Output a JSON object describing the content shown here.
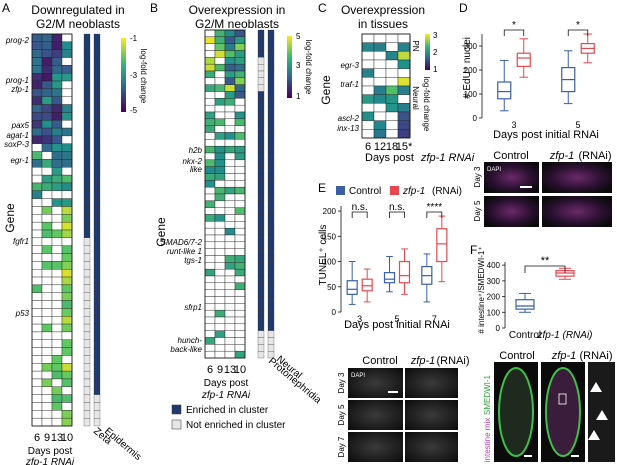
{
  "figure": {
    "panelA": {
      "letter": "A",
      "title_line1": "Downregulated in",
      "title_line2": "G2/M neoblasts",
      "gene_axis": "Gene",
      "genes": [
        "prog-2",
        "prog-1",
        "zfp-1",
        "pax5",
        "agat-1",
        "soxP-3",
        "egr-1",
        "fgfr1",
        "p53"
      ],
      "days": [
        "6",
        "9",
        "13",
        "10"
      ],
      "xlabel1": "Days post",
      "xlabel2": "zfp-1 RNAi",
      "cluster_labels": [
        "Zeta",
        "Epidermis"
      ],
      "colorbar_ticks": [
        "-1",
        "-3",
        "-5"
      ],
      "colorbar_label": "log-fold change"
    },
    "panelB": {
      "letter": "B",
      "title_line1": "Overexpression in",
      "title_line2": "G2/M neoblasts",
      "gene_axis": "Gene",
      "genes": [
        "h2b",
        "nkx-2",
        "like",
        "SMAD6/7-2",
        "runt-like 1",
        "tgs-1",
        "sfrp1",
        "hunch-",
        "back-like"
      ],
      "days": [
        "6",
        "9",
        "13",
        "10"
      ],
      "xlabel1": "Days post",
      "xlabel2": "zfp-1 RNAi",
      "cluster_labels": [
        "Neural",
        "Protonephridia"
      ],
      "colorbar_ticks": [
        "5",
        "3",
        "1"
      ],
      "colorbar_label": "log-fold change"
    },
    "panelC": {
      "letter": "C",
      "title_line1": "Overexpression",
      "title_line2": "in tissues",
      "gene_axis": "Gene",
      "genes": [
        "egr-3",
        "traf-1",
        "ascl-2",
        "inx-13"
      ],
      "days": [
        "6",
        "12",
        "18",
        "15*"
      ],
      "xlabel1": "Days post",
      "xlabel2": "zfp-1 RNAi",
      "bracket_labels": [
        "PN",
        "Neural"
      ],
      "colorbar_ticks": [
        "3",
        "2",
        "1"
      ],
      "colorbar_label": "log-fold change"
    },
    "panelD": {
      "letter": "D",
      "ylabel": "# EdU⁺ nuclei",
      "yticks": [
        "300",
        "200",
        "100",
        "0"
      ],
      "xticks": [
        "3",
        "5"
      ],
      "xlabel": "Days post initial RNAi",
      "sig": [
        "*",
        "*"
      ],
      "img_label_control": "Control",
      "img_label_zfp": "zfp-1",
      "img_label_rnai": "(RNAi)",
      "rows": [
        "Day 3",
        "Day 5"
      ],
      "dapi": "DAPI"
    },
    "panelE": {
      "letter": "E",
      "legend_control": "Control",
      "legend_zfp": "zfp-1",
      "legend_rnai": "(RNAi)",
      "ylabel": "TUNEL⁺ cells",
      "yticks": [
        "200",
        "150",
        "100",
        "50",
        "0"
      ],
      "xticks": [
        "3",
        "5",
        "7"
      ],
      "xlabel": "Days post initial RNAi",
      "sig": [
        "n.s.",
        "n.s.",
        "****"
      ],
      "img_label_control": "Control",
      "img_label_zfp": "zfp-1",
      "img_label_rnai": "(RNAi)",
      "rows": [
        "Day 3",
        "Day 5",
        "Day 7"
      ],
      "dapi": "DAPI"
    },
    "panelF": {
      "letter": "F",
      "ylabel": "# intestine⁺/SMEDWI-1⁺",
      "yticks": [
        "400",
        "300",
        "200",
        "100",
        "0"
      ],
      "xticks": [
        "Control",
        "zfp-1 (RNAi)"
      ],
      "sig": "**",
      "img_label_control": "Control",
      "img_label_zfp": "zfp-1",
      "img_label_rnai": "(RNAi)",
      "stain1": "intestine mix",
      "stain2": "SMEDWI-1"
    },
    "legend": {
      "enriched": "Enriched in cluster",
      "not_enriched": "Not enriched in cluster"
    }
  },
  "chart_data": [
    {
      "type": "heatmap",
      "title": "Downregulated in G2/M neoblasts",
      "x": [
        "6",
        "9",
        "13",
        "10"
      ],
      "value_range": [
        -5,
        -1
      ],
      "columns": [
        "Zeta",
        "Epidermis"
      ],
      "note": "log-fold change by gene and day; cluster enrichment columns"
    },
    {
      "type": "heatmap",
      "title": "Overexpression in G2/M neoblasts",
      "x": [
        "6",
        "9",
        "13",
        "10"
      ],
      "value_range": [
        1,
        5
      ],
      "columns": [
        "Neural",
        "Protonephridia"
      ]
    },
    {
      "type": "heatmap",
      "title": "Overexpression in tissues",
      "x": [
        "6",
        "12",
        "18",
        "15*"
      ],
      "value_range": [
        1,
        3
      ]
    },
    {
      "type": "box",
      "ylabel": "# EdU⁺ nuclei",
      "ylim": [
        0,
        350
      ],
      "categories": [
        "3",
        "5"
      ],
      "series": [
        {
          "name": "Control",
          "color": "#3a5fa8",
          "boxes": [
            [
              30,
              80,
              110,
              150,
              240
            ],
            [
              60,
              110,
              160,
              210,
              280
            ]
          ]
        },
        {
          "name": "zfp-1 (RNAi)",
          "color": "#e8474f",
          "boxes": [
            [
              170,
              215,
              250,
              270,
              330
            ],
            [
              230,
              270,
              290,
              310,
              350
            ]
          ]
        }
      ]
    },
    {
      "type": "box",
      "ylabel": "TUNEL⁺ cells",
      "ylim": [
        0,
        200
      ],
      "categories": [
        "3",
        "5",
        "7"
      ],
      "series": [
        {
          "name": "Control",
          "color": "#3a5fa8",
          "boxes": [
            [
              15,
              35,
              45,
              62,
              100
            ],
            [
              40,
              58,
              65,
              78,
              110
            ],
            [
              20,
              55,
              72,
              90,
              115
            ]
          ]
        },
        {
          "name": "zfp-1 (RNAi)",
          "color": "#e8474f",
          "boxes": [
            [
              20,
              42,
              52,
              65,
              85
            ],
            [
              35,
              58,
              72,
              100,
              125
            ],
            [
              60,
              100,
              135,
              165,
              190
            ]
          ]
        }
      ]
    },
    {
      "type": "box",
      "ylabel": "# intestine⁺/SMEDWI-1⁺",
      "ylim": [
        0,
        400
      ],
      "categories": [
        "Control",
        "zfp-1 (RNAi)"
      ],
      "series": [
        {
          "name": "Control",
          "color": "#3a5fa8",
          "boxes": [
            [
              100,
              120,
              140,
              180,
              220
            ]
          ]
        },
        {
          "name": "zfp-1 (RNAi)",
          "color": "#e8474f",
          "boxes": [
            [
              310,
              330,
              350,
              365,
              380
            ]
          ]
        }
      ]
    }
  ]
}
